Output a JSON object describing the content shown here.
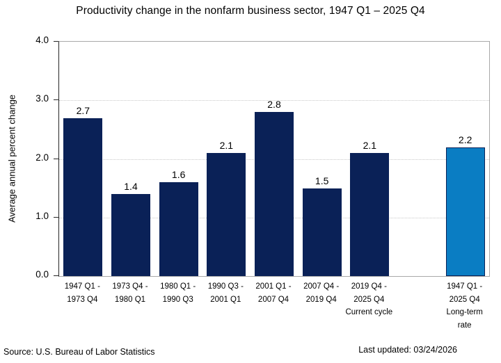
{
  "chart_data": {
    "type": "bar",
    "title": "Productivity change in the nonfarm business sector, 1947 Q1 – 2025 Q4",
    "xlabel": "",
    "ylabel": "Average annual percent change",
    "ylim": [
      0,
      4.0
    ],
    "yticks": [
      0,
      1,
      2,
      3,
      4
    ],
    "ytick_labels": [
      "0.0",
      "1.0",
      "2.0",
      "3.0",
      "4.0"
    ],
    "grid": "horizontal-dotted",
    "legend": "none",
    "colors": {
      "bar_default": "#0a2157",
      "bar_highlight": "#0a7dc3",
      "bar_highlight_border": "#0a2157",
      "gridline": "#c8c8c8",
      "axis_left": "#262626",
      "frame": "#a8a8a8"
    },
    "categories": [
      "1947 Q1 - 1973 Q4",
      "1973 Q4 - 1980 Q1",
      "1980 Q1 - 1990 Q3",
      "1990 Q3 - 2001 Q1",
      "2001 Q1 - 2007 Q4",
      "2007 Q4 - 2019 Q4",
      "2019 Q4 - 2025 Q4 Current cycle",
      "1947 Q1 - 2025 Q4 Long-term rate"
    ],
    "values": [
      2.7,
      1.4,
      1.6,
      2.1,
      2.8,
      1.5,
      2.1,
      2.2
    ],
    "slots": [
      {
        "category_lines": [
          "1947 Q1 -",
          "1973 Q4"
        ],
        "value": 2.7,
        "label": "2.7",
        "color": "#0a2157",
        "border_color": null
      },
      {
        "category_lines": [
          "1973 Q4 -",
          "1980 Q1"
        ],
        "value": 1.4,
        "label": "1.4",
        "color": "#0a2157",
        "border_color": null
      },
      {
        "category_lines": [
          "1980 Q1 -",
          "1990 Q3"
        ],
        "value": 1.6,
        "label": "1.6",
        "color": "#0a2157",
        "border_color": null
      },
      {
        "category_lines": [
          "1990 Q3 -",
          "2001 Q1"
        ],
        "value": 2.1,
        "label": "2.1",
        "color": "#0a2157",
        "border_color": null
      },
      {
        "category_lines": [
          "2001 Q1 -",
          "2007 Q4"
        ],
        "value": 2.8,
        "label": "2.8",
        "color": "#0a2157",
        "border_color": null
      },
      {
        "category_lines": [
          "2007 Q4 -",
          "2019 Q4"
        ],
        "value": 1.5,
        "label": "1.5",
        "color": "#0a2157",
        "border_color": null
      },
      {
        "category_lines": [
          "2019 Q4 -",
          "2025 Q4",
          "Current cycle"
        ],
        "value": 2.1,
        "label": "2.1",
        "color": "#0a2157",
        "border_color": null
      },
      {
        "category_lines": [],
        "value": null,
        "label": "",
        "color": null,
        "border_color": null
      },
      {
        "category_lines": [
          "1947 Q1 -",
          "2025 Q4",
          "Long-term",
          "rate"
        ],
        "value": 2.2,
        "label": "2.2",
        "color": "#0a7dc3",
        "border_color": "#0a2157"
      }
    ]
  },
  "footer": {
    "source": "Source: U.S. Bureau of Labor Statistics",
    "last_updated": "Last updated: 03/24/2026"
  }
}
